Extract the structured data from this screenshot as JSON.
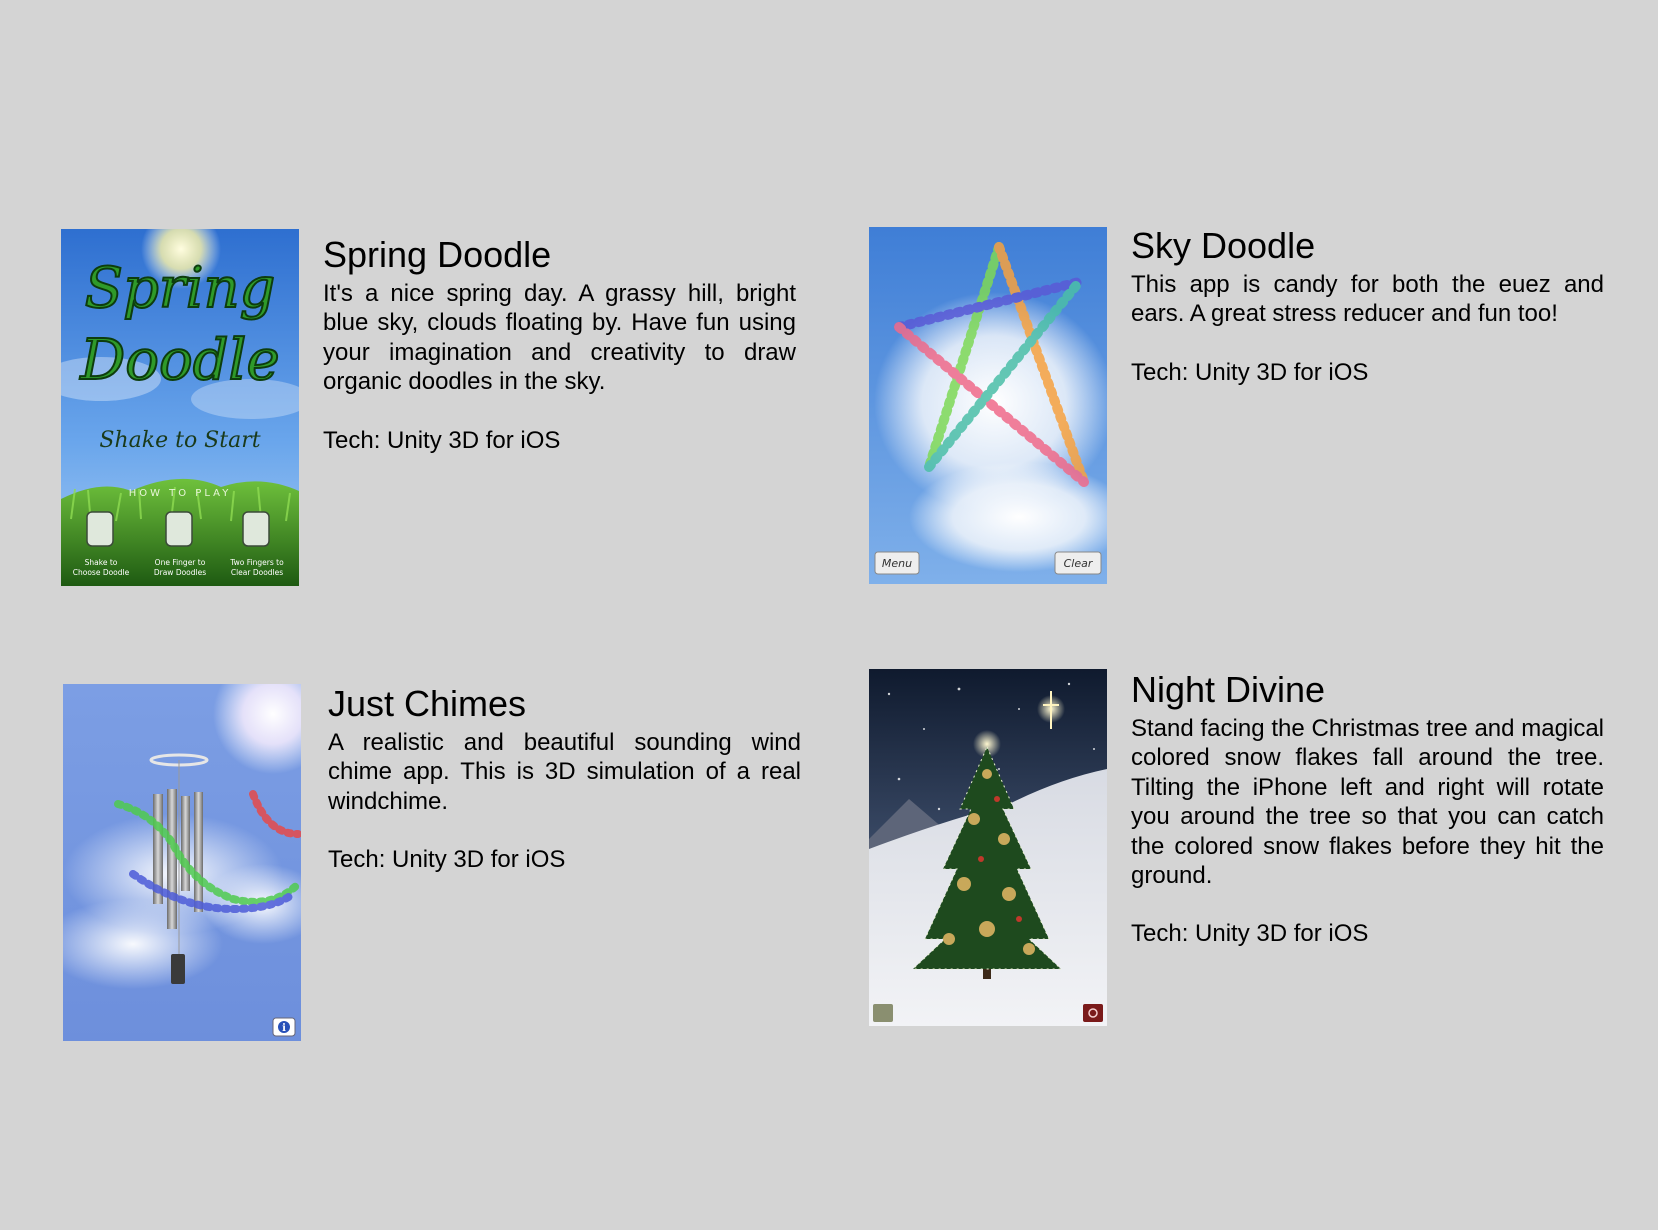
{
  "apps": [
    {
      "title": "Spring Doodle",
      "description": "It's a nice spring day. A grassy hill, bright blue sky, clouds floating by. Have fun using your imagination and creativity to draw organic doodles in the sky.",
      "tech": "Tech: Unity 3D for iOS",
      "screen": {
        "logo_line1": "Spring",
        "logo_line2": "Doodle",
        "start": "Shake to Start",
        "how_to": "HOW TO PLAY",
        "hint1a": "Shake to",
        "hint1b": "Choose Doodle",
        "hint2a": "One Finger to",
        "hint2b": "Draw Doodles",
        "hint3a": "Two Fingers to",
        "hint3b": "Clear Doodles"
      }
    },
    {
      "title": "Sky Doodle",
      "description": "This app is candy for both the euez and ears. A great stress reducer and fun too!",
      "tech": "Tech: Unity 3D for iOS",
      "screen": {
        "menu": "Menu",
        "clear": "Clear"
      }
    },
    {
      "title": "Just Chimes",
      "description": "A realistic and beautiful sounding wind chime app. This is 3D simulation of a real windchime.",
      "tech": "Tech: Unity 3D for iOS",
      "screen": {
        "info_icon": "info-icon"
      }
    },
    {
      "title": "Night Divine",
      "description": "Stand facing the Christmas tree and magical colored snow flakes fall around the tree. Tilting the iPhone left and right will rotate you around the tree so that you can catch the colored snow flakes before they hit the ground.",
      "tech": "Tech: Unity 3D for iOS",
      "screen": {}
    }
  ],
  "colors": {
    "background": "#d4d4d4",
    "sky_blue": "#3e7ed4",
    "grass_green": "#3f8f1f"
  }
}
